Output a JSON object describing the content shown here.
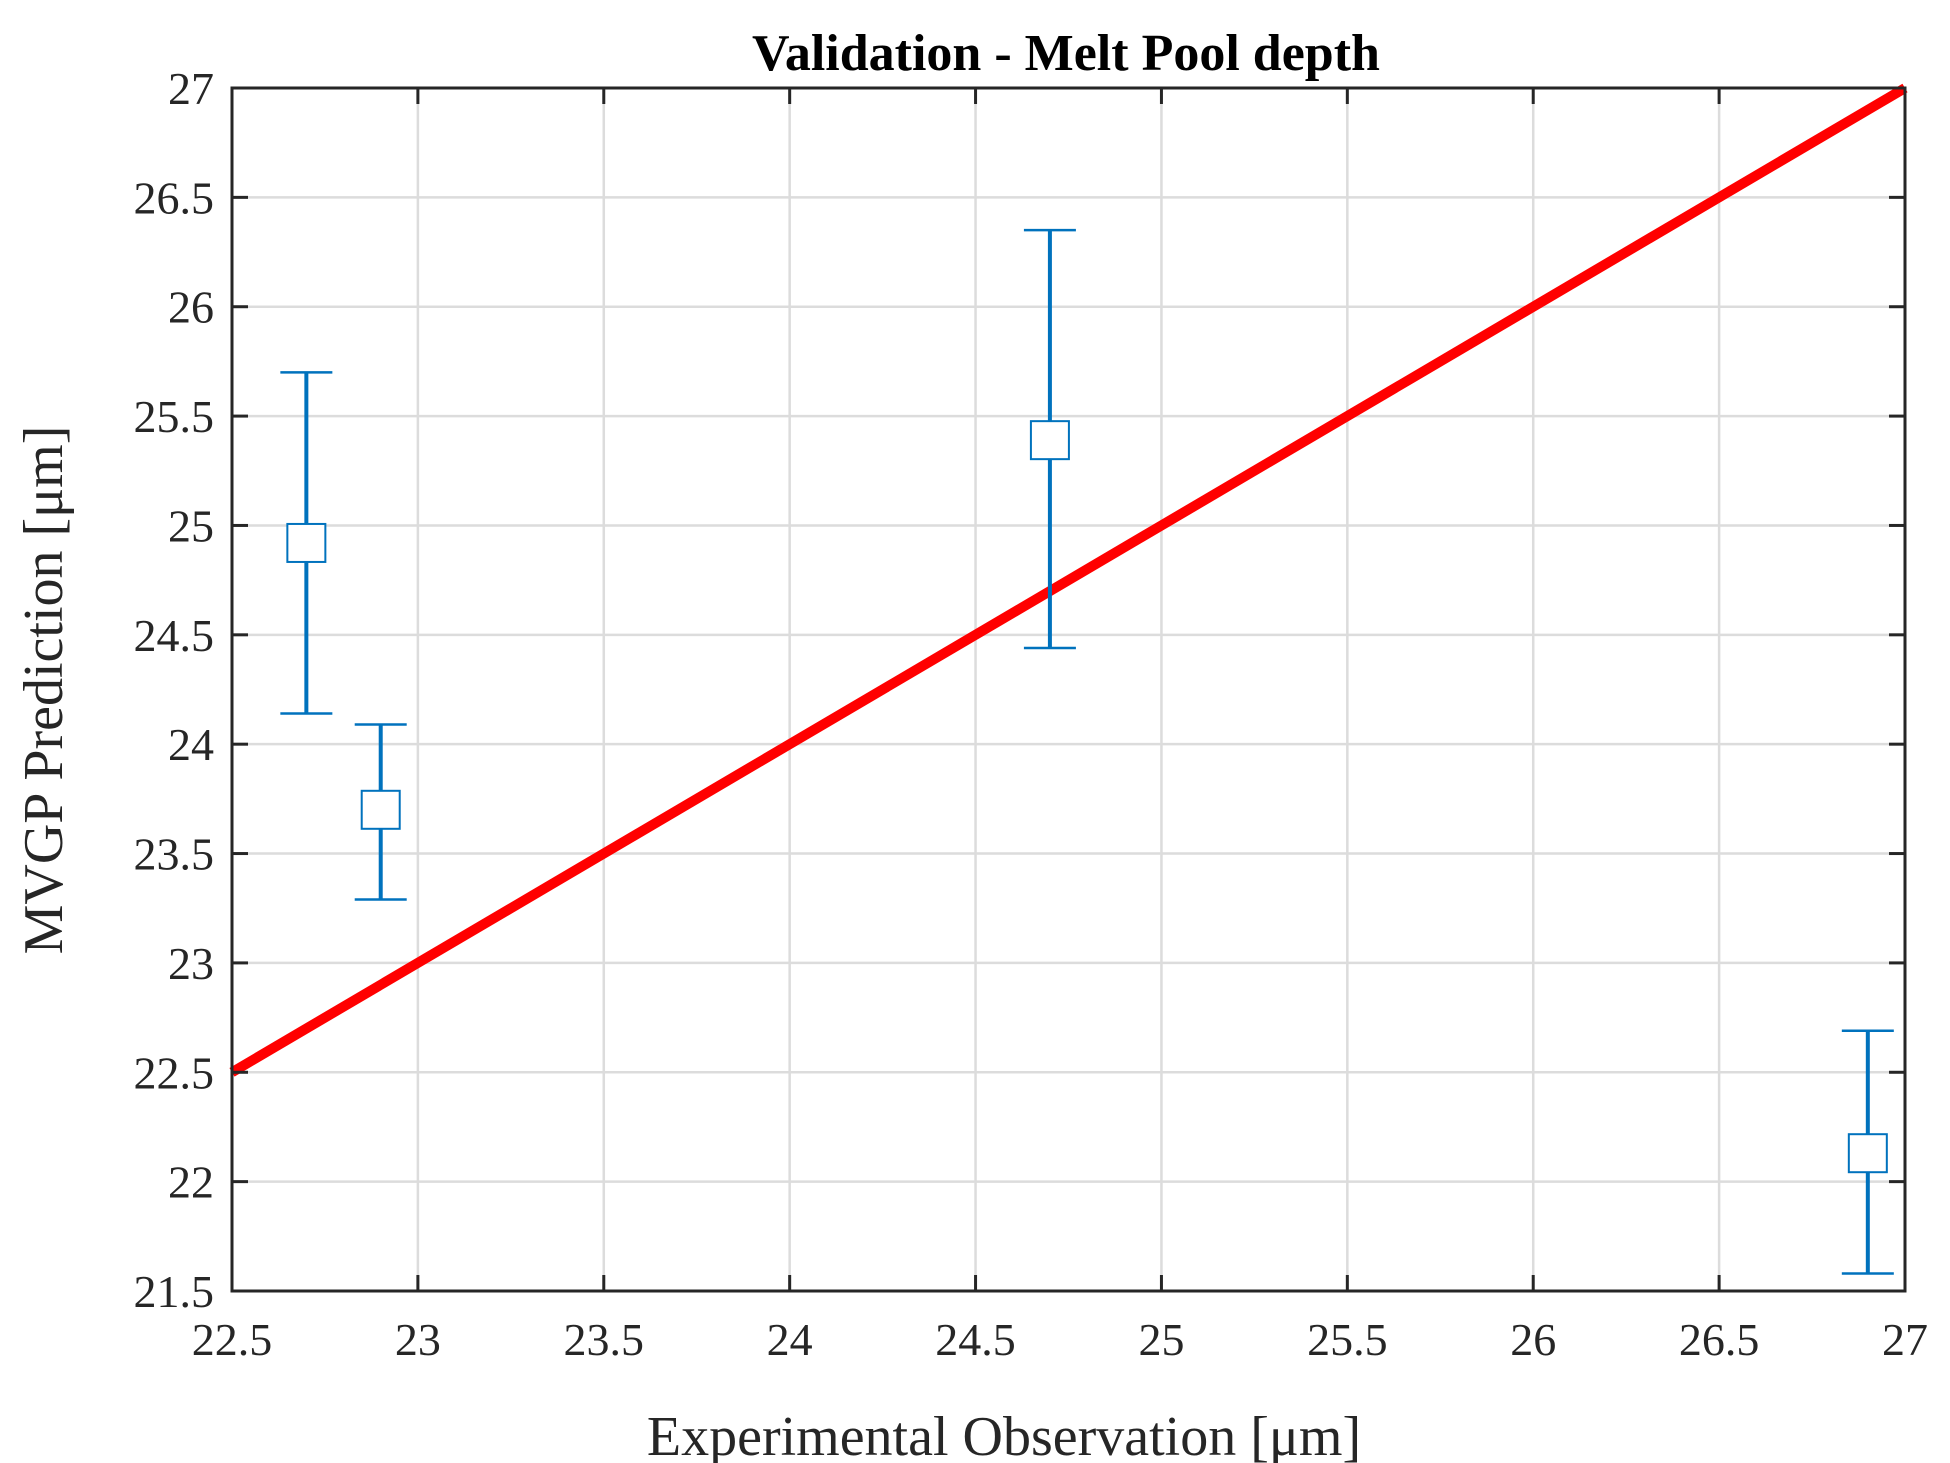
{
  "chart_data": {
    "type": "scatter",
    "title": "Validation - Melt Pool depth",
    "xlabel": "Experimental Observation [μm]",
    "ylabel": "MVGP Prediction [μm]",
    "xlim": [
      22.5,
      27
    ],
    "ylim": [
      21.5,
      27
    ],
    "x_ticks": [
      "22.5",
      "23",
      "23.5",
      "24",
      "24.5",
      "25",
      "25.5",
      "26",
      "26.5",
      "27"
    ],
    "y_ticks": [
      "21.5",
      "22",
      "22.5",
      "23",
      "23.5",
      "24",
      "24.5",
      "25",
      "25.5",
      "26",
      "26.5",
      "27"
    ],
    "grid": true,
    "series": [
      {
        "marker": "square",
        "color": "#0072BD",
        "points": [
          {
            "x": 22.7,
            "y": 24.92,
            "lower": 24.14,
            "upper": 25.7
          },
          {
            "x": 22.9,
            "y": 23.7,
            "lower": 23.29,
            "upper": 24.09
          },
          {
            "x": 24.7,
            "y": 25.39,
            "lower": 24.44,
            "upper": 26.35
          },
          {
            "x": 26.9,
            "y": 22.13,
            "lower": 21.58,
            "upper": 22.69
          }
        ]
      }
    ],
    "reference_line": {
      "x": [
        22.5,
        27
      ],
      "y": [
        22.5,
        27
      ],
      "color": "#FF0000"
    }
  }
}
